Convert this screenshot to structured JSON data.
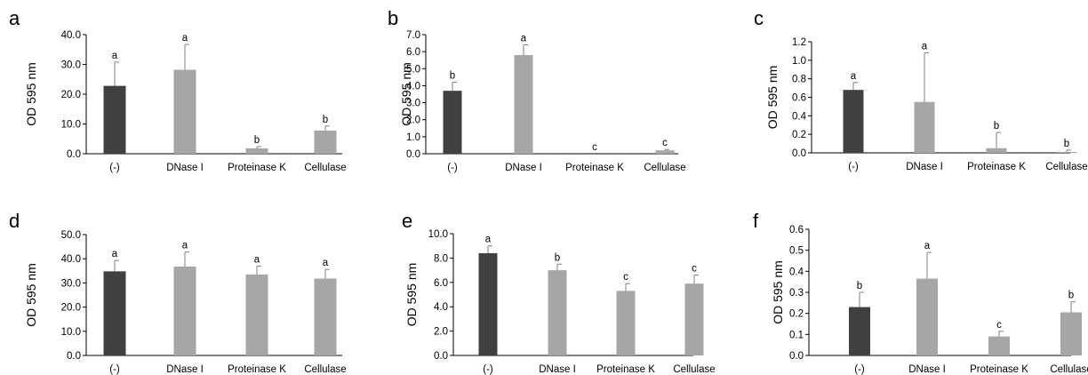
{
  "chart_data": [
    {
      "panel": "a",
      "type": "bar",
      "categories": [
        "(-)",
        "DNase I",
        "Proteinase K",
        "Cellulase"
      ],
      "values": [
        22.8,
        28.2,
        1.8,
        7.8
      ],
      "errors": [
        8.0,
        8.5,
        0.6,
        1.5
      ],
      "significance": [
        "a",
        "a",
        "b",
        "b"
      ],
      "ylabel": "OD 595 nm",
      "ylim": [
        0,
        40
      ],
      "yticks": [
        "0.0",
        "10.0",
        "20.0",
        "30.0",
        "40.0"
      ],
      "colors": [
        "#404040",
        "#a6a6a6",
        "#a6a6a6",
        "#a6a6a6"
      ]
    },
    {
      "panel": "b",
      "type": "bar",
      "categories": [
        "(-)",
        "DNase I",
        "Proteinase K",
        "Cellulase"
      ],
      "values": [
        3.7,
        5.8,
        0.0,
        0.2
      ],
      "errors": [
        0.5,
        0.6,
        0.0,
        0.05
      ],
      "significance": [
        "b",
        "a",
        "c",
        "c"
      ],
      "ylabel": "OD 595 nm",
      "ylim": [
        0,
        7
      ],
      "yticks": [
        "0.0",
        "1.0",
        "2.0",
        "3.0",
        "4.0",
        "5.0",
        "6.0",
        "7.0"
      ],
      "colors": [
        "#404040",
        "#a6a6a6",
        "#a6a6a6",
        "#a6a6a6"
      ]
    },
    {
      "panel": "c",
      "type": "bar",
      "categories": [
        "(-)",
        "DNase I",
        "Proteinase K",
        "Cellulase"
      ],
      "values": [
        0.68,
        0.55,
        0.05,
        0.01
      ],
      "errors": [
        0.08,
        0.53,
        0.17,
        0.02
      ],
      "significance": [
        "a",
        "a",
        "b",
        "b"
      ],
      "ylabel": "OD 595 nm",
      "ylim": [
        0,
        1.2
      ],
      "yticks": [
        "0.0",
        "0.2",
        "0.4",
        "0.6",
        "0.8",
        "1.0",
        "1.2"
      ],
      "colors": [
        "#404040",
        "#a6a6a6",
        "#a6a6a6",
        "#a6a6a6"
      ]
    },
    {
      "panel": "d",
      "type": "bar",
      "categories": [
        "(-)",
        "DNase I",
        "Proteinase K",
        "Cellulase"
      ],
      "values": [
        34.8,
        36.8,
        33.5,
        31.8
      ],
      "errors": [
        4.5,
        6.0,
        3.5,
        3.8
      ],
      "significance": [
        "a",
        "a",
        "a",
        "a"
      ],
      "ylabel": "OD 595 nm",
      "ylim": [
        0,
        50
      ],
      "yticks": [
        "0.0",
        "10.0",
        "20.0",
        "30.0",
        "40.0",
        "50.0"
      ],
      "colors": [
        "#404040",
        "#a6a6a6",
        "#a6a6a6",
        "#a6a6a6"
      ]
    },
    {
      "panel": "e",
      "type": "bar",
      "categories": [
        "(-)",
        "DNase I",
        "Proteinase K",
        "Cellulase"
      ],
      "values": [
        8.4,
        7.0,
        5.3,
        5.9
      ],
      "errors": [
        0.6,
        0.5,
        0.6,
        0.7
      ],
      "significance": [
        "a",
        "b",
        "c",
        "c"
      ],
      "ylabel": "OD 595 nm",
      "ylim": [
        0,
        10
      ],
      "yticks": [
        "0.0",
        "2.0",
        "4.0",
        "6.0",
        "8.0",
        "10.0"
      ],
      "colors": [
        "#404040",
        "#a6a6a6",
        "#a6a6a6",
        "#a6a6a6"
      ]
    },
    {
      "panel": "f",
      "type": "bar",
      "categories": [
        "(-)",
        "DNase I",
        "Proteinase K",
        "Cellulase"
      ],
      "values": [
        0.23,
        0.365,
        0.09,
        0.205
      ],
      "errors": [
        0.07,
        0.125,
        0.025,
        0.05
      ],
      "significance": [
        "b",
        "a",
        "c",
        "b"
      ],
      "ylabel": "OD 595 nm",
      "ylim": [
        0,
        0.6
      ],
      "yticks": [
        "0.0",
        "0.1",
        "0.2",
        "0.3",
        "0.4",
        "0.5",
        "0.6"
      ],
      "colors": [
        "#404040",
        "#a6a6a6",
        "#a6a6a6",
        "#a6a6a6"
      ]
    }
  ]
}
